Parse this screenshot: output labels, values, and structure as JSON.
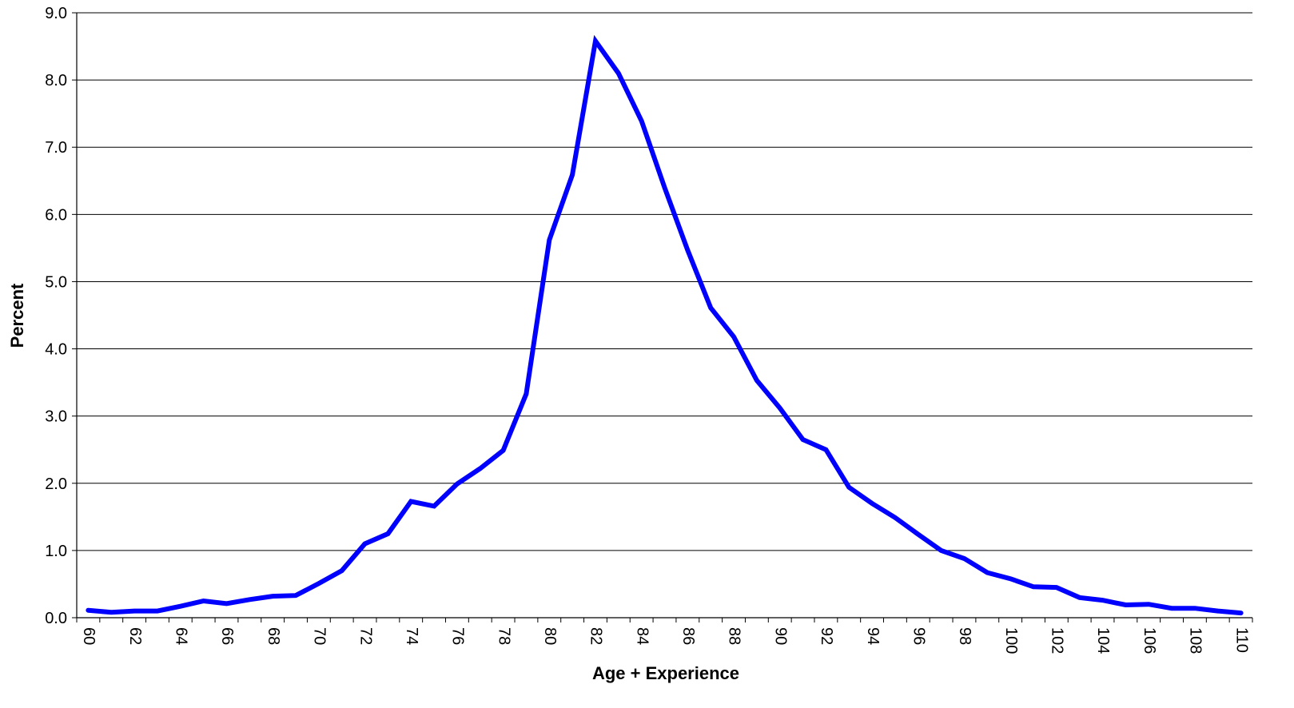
{
  "chart_data": {
    "type": "line",
    "title": "",
    "xlabel": "Age + Experience",
    "ylabel": "Percent",
    "xlim": [
      60,
      110
    ],
    "ylim": [
      0,
      9
    ],
    "grid": "horizontal",
    "line_color": "#0000ff",
    "y_ticks": [
      "0.0",
      "1.0",
      "2.0",
      "3.0",
      "4.0",
      "5.0",
      "6.0",
      "7.0",
      "8.0",
      "9.0"
    ],
    "x_ticks": [
      "60",
      "62",
      "64",
      "66",
      "68",
      "70",
      "72",
      "74",
      "76",
      "78",
      "80",
      "82",
      "84",
      "86",
      "88",
      "90",
      "92",
      "94",
      "96",
      "98",
      "100",
      "102",
      "104",
      "106",
      "108",
      "110"
    ],
    "x": [
      60,
      61,
      62,
      63,
      64,
      65,
      66,
      67,
      68,
      69,
      70,
      71,
      72,
      73,
      74,
      75,
      76,
      77,
      78,
      79,
      80,
      81,
      82,
      83,
      84,
      85,
      86,
      87,
      88,
      89,
      90,
      91,
      92,
      93,
      94,
      95,
      96,
      97,
      98,
      99,
      100,
      101,
      102,
      103,
      104,
      105,
      106,
      107,
      108,
      109,
      110
    ],
    "series": [
      {
        "values": [
          0.11,
          0.08,
          0.1,
          0.1,
          0.17,
          0.25,
          0.21,
          0.27,
          0.32,
          0.33,
          0.51,
          0.7,
          1.1,
          1.25,
          1.73,
          1.66,
          1.99,
          2.22,
          2.49,
          3.33,
          5.62,
          6.59,
          8.58,
          8.1,
          7.39,
          6.4,
          5.47,
          4.61,
          4.18,
          3.53,
          3.12,
          2.65,
          2.5,
          1.94,
          1.7,
          1.49,
          1.24,
          1.0,
          0.88,
          0.67,
          0.58,
          0.46,
          0.45,
          0.3,
          0.26,
          0.19,
          0.2,
          0.14,
          0.14,
          0.1,
          0.07
        ]
      }
    ]
  }
}
